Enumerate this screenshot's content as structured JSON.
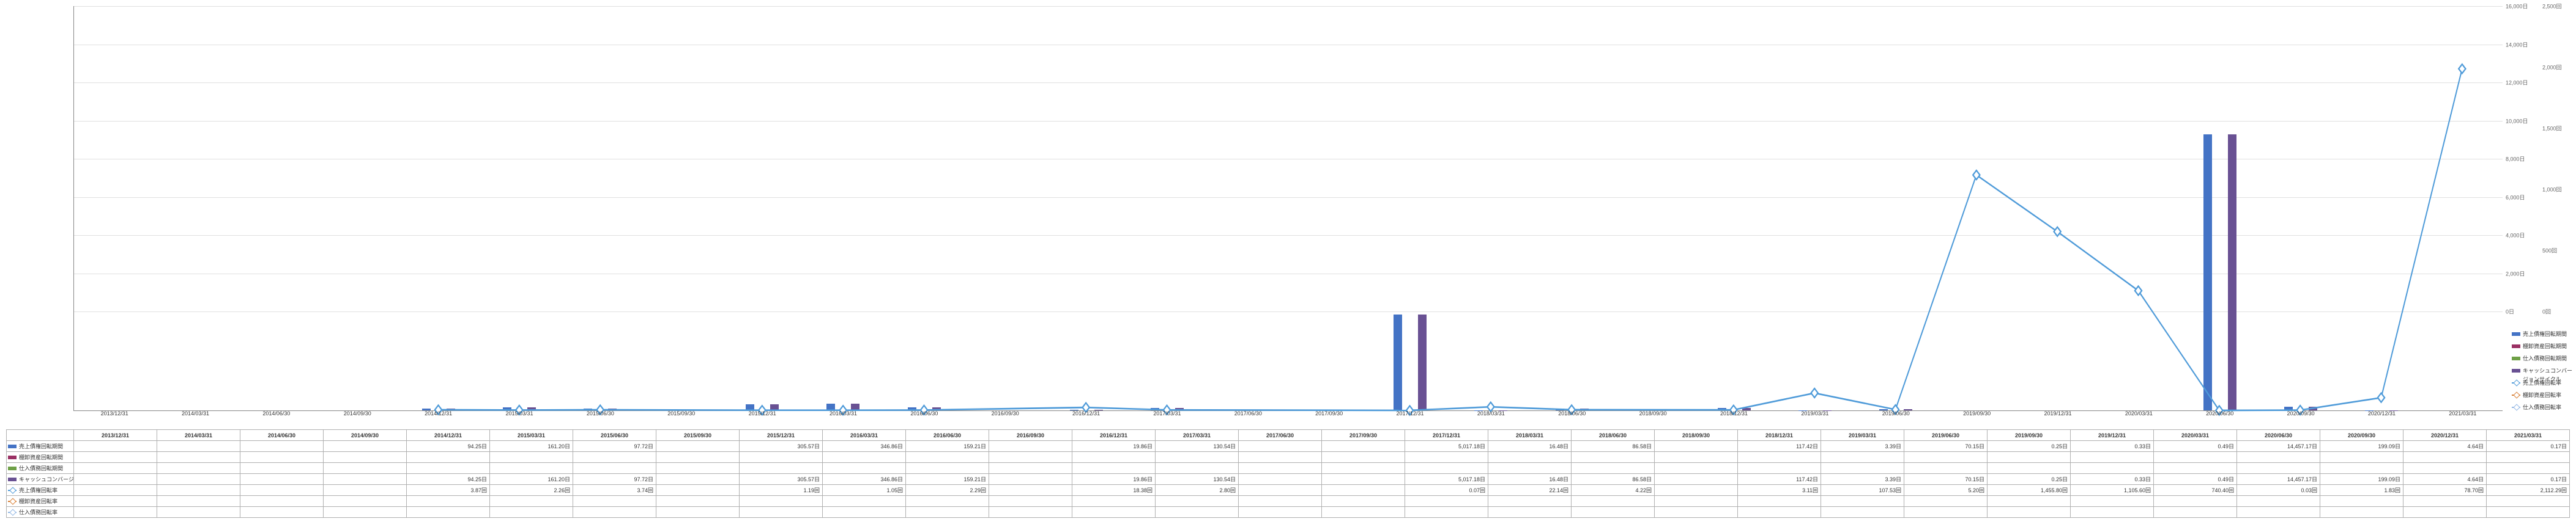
{
  "chart": {
    "type": "combo-bar-line",
    "background_color": "#ffffff",
    "grid_color": "#e0e0e0",
    "axis_color": "#888888",
    "label_fontsize": 9,
    "left_axis": {
      "unit_suffix": "日",
      "min": 0,
      "max": 16000,
      "step": 2000
    },
    "right_axis": {
      "unit_suffix": "回",
      "min": 0,
      "max": 2500,
      "step": 500
    },
    "categories": [
      "2013/12/31",
      "2014/03/31",
      "2014/06/30",
      "2014/09/30",
      "2014/12/31",
      "2015/03/31",
      "2015/06/30",
      "2015/09/30",
      "2015/12/31",
      "2016/03/31",
      "2016/06/30",
      "2016/09/30",
      "2016/12/31",
      "2017/03/31",
      "2017/06/30",
      "2017/09/30",
      "2017/12/31",
      "2018/03/31",
      "2018/06/30",
      "2018/09/30",
      "2018/12/31",
      "2019/03/31",
      "2019/06/30",
      "2019/09/30",
      "2019/12/31",
      "2020/03/31",
      "2020/06/30",
      "2020/09/30",
      "2020/12/31",
      "2021/03/31"
    ],
    "series": {
      "bar_uriage_saiken_kikan": {
        "label": "売上債権回転期間",
        "type": "bar",
        "axis": "left",
        "color": "#4473c5",
        "bar_offset": -20,
        "values": [
          null,
          null,
          null,
          null,
          94.25,
          161.2,
          97.72,
          null,
          305.57,
          346.86,
          159.21,
          null,
          19.86,
          130.54,
          null,
          null,
          5017.18,
          16.48,
          86.58,
          null,
          117.42,
          3.39,
          70.15,
          0.25,
          0.33,
          0.49,
          14457.17,
          199.09,
          4.64,
          0.17
        ],
        "display": [
          null,
          null,
          null,
          null,
          "94.25日",
          "161.20日",
          "97.72日",
          null,
          "305.57日",
          "346.86日",
          "159.21日",
          null,
          "19.86日",
          "130.54日",
          null,
          null,
          "5,017.18日",
          "16.48日",
          "86.58日",
          null,
          "117.42日",
          "3.39日",
          "70.15日",
          "0.25日",
          "0.33日",
          "0.49日",
          "14,457.17日",
          "199.09日",
          "4.64日",
          "0.17日"
        ]
      },
      "bar_tanaoroshi_kikan": {
        "label": "棚卸資産回転期間",
        "type": "bar",
        "axis": "left",
        "color": "#9a3063",
        "bar_offset": 0,
        "values": [
          null,
          null,
          null,
          null,
          null,
          null,
          null,
          null,
          null,
          null,
          null,
          null,
          null,
          null,
          null,
          null,
          null,
          null,
          null,
          null,
          null,
          null,
          null,
          null,
          null,
          null,
          null,
          null,
          null,
          null
        ],
        "display": [
          null,
          null,
          null,
          null,
          null,
          null,
          null,
          null,
          null,
          null,
          null,
          null,
          null,
          null,
          null,
          null,
          null,
          null,
          null,
          null,
          null,
          null,
          null,
          null,
          null,
          null,
          null,
          null,
          null,
          null
        ]
      },
      "bar_shiire_saimu_kikan": {
        "label": "仕入債務回転期間",
        "type": "bar",
        "axis": "left",
        "color": "#6ea046",
        "bar_offset": 20,
        "values": [
          null,
          null,
          null,
          null,
          null,
          null,
          null,
          null,
          null,
          null,
          null,
          null,
          null,
          null,
          null,
          null,
          null,
          null,
          null,
          null,
          null,
          null,
          null,
          null,
          null,
          null,
          null,
          null,
          null,
          null
        ],
        "display": [
          null,
          null,
          null,
          null,
          null,
          null,
          null,
          null,
          null,
          null,
          null,
          null,
          null,
          null,
          null,
          null,
          null,
          null,
          null,
          null,
          null,
          null,
          null,
          null,
          null,
          null,
          null,
          null,
          null,
          null
        ]
      },
      "bar_ccc": {
        "label": "キャッシュコンバージョンサイクル",
        "type": "bar",
        "axis": "left",
        "color": "#695193",
        "bar_offset": 20,
        "values": [
          null,
          null,
          null,
          null,
          94.25,
          161.2,
          97.72,
          null,
          305.57,
          346.86,
          159.21,
          null,
          19.86,
          130.54,
          null,
          null,
          5017.18,
          16.48,
          86.58,
          null,
          117.42,
          3.39,
          70.15,
          0.25,
          0.33,
          0.49,
          14457.17,
          199.09,
          4.64,
          0.17
        ],
        "display": [
          null,
          null,
          null,
          null,
          "94.25日",
          "161.20日",
          "97.72日",
          null,
          "305.57日",
          "346.86日",
          "159.21日",
          null,
          "19.86日",
          "130.54日",
          null,
          null,
          "5,017.18日",
          "16.48日",
          "86.58日",
          null,
          "117.42日",
          "3.39日",
          "70.15日",
          "0.25日",
          "0.33日",
          "0.49日",
          "14,457.17日",
          "199.09日",
          "4.64日",
          "0.17日"
        ]
      },
      "line_uriage_saiken_ritsu": {
        "label": "売上債権回転率",
        "type": "line",
        "axis": "right",
        "color": "#4f9bd9",
        "marker": "diamond",
        "values": [
          null,
          null,
          null,
          null,
          3.87,
          2.26,
          3.74,
          null,
          1.19,
          1.05,
          2.29,
          null,
          18.38,
          2.8,
          null,
          null,
          0.07,
          22.14,
          4.22,
          null,
          3.11,
          107.53,
          5.2,
          1455.8,
          1105.6,
          740.4,
          0.03,
          1.83,
          78.7,
          2112.29
        ],
        "display": [
          null,
          null,
          null,
          null,
          "3.87回",
          "2.26回",
          "3.74回",
          null,
          "1.19回",
          "1.05回",
          "2.29回",
          null,
          "18.38回",
          "2.80回",
          null,
          null,
          "0.07回",
          "22.14回",
          "4.22回",
          null,
          "3.11回",
          "107.53回",
          "5.20回",
          "1,455.80回",
          "1,105.60回",
          "740.40回",
          "0.03回",
          "1.83回",
          "78.70回",
          "2,112.29回"
        ]
      },
      "line_tanaoroshi_ritsu": {
        "label": "棚卸資産回転率",
        "type": "line",
        "axis": "right",
        "color": "#d87f35",
        "marker": "circle",
        "values": [
          null,
          null,
          null,
          null,
          null,
          null,
          null,
          null,
          null,
          null,
          null,
          null,
          null,
          null,
          null,
          null,
          null,
          null,
          null,
          null,
          null,
          null,
          null,
          null,
          null,
          null,
          null,
          null,
          null,
          null
        ],
        "display": [
          null,
          null,
          null,
          null,
          null,
          null,
          null,
          null,
          null,
          null,
          null,
          null,
          null,
          null,
          null,
          null,
          null,
          null,
          null,
          null,
          null,
          null,
          null,
          null,
          null,
          null,
          null,
          null,
          null,
          null
        ]
      },
      "line_shiire_saimu_ritsu": {
        "label": "仕入債務回転率",
        "type": "line",
        "axis": "right",
        "color": "#93b7e4",
        "marker": "square",
        "values": [
          null,
          null,
          null,
          null,
          null,
          null,
          null,
          null,
          null,
          null,
          null,
          null,
          null,
          null,
          null,
          null,
          null,
          null,
          null,
          null,
          null,
          null,
          null,
          null,
          null,
          null,
          null,
          null,
          null,
          null
        ],
        "display": [
          null,
          null,
          null,
          null,
          null,
          null,
          null,
          null,
          null,
          null,
          null,
          null,
          null,
          null,
          null,
          null,
          null,
          null,
          null,
          null,
          null,
          null,
          null,
          null,
          null,
          null,
          null,
          null,
          null,
          null
        ]
      }
    },
    "table_row_order": [
      "bar_uriage_saiken_kikan",
      "bar_tanaoroshi_kikan",
      "bar_shiire_saimu_kikan",
      "bar_ccc",
      "line_uriage_saiken_ritsu",
      "line_tanaoroshi_ritsu",
      "line_shiire_saimu_ritsu"
    ],
    "legend_side_order": [
      "bar_uriage_saiken_kikan",
      "bar_tanaoroshi_kikan",
      "bar_shiire_saimu_kikan",
      "bar_ccc",
      "line_uriage_saiken_ritsu",
      "line_tanaoroshi_ritsu",
      "line_shiire_saimu_ritsu"
    ]
  }
}
